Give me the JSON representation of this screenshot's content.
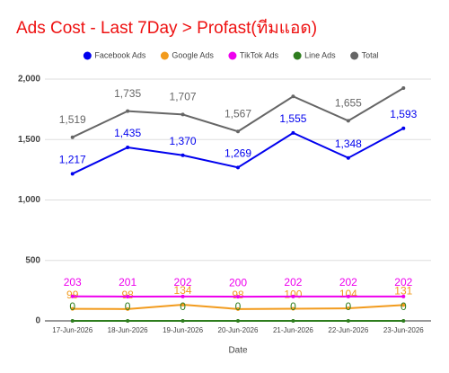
{
  "chart_data": {
    "type": "line",
    "title": "Ads Cost - Last 7Day > Profast(ทีมแอด)",
    "x_label": "Date",
    "categories": [
      "17-Jun-2026",
      "18-Jun-2026",
      "19-Jun-2026",
      "20-Jun-2026",
      "21-Jun-2026",
      "22-Jun-2026",
      "23-Jun-2026"
    ],
    "series": [
      {
        "name": "Facebook Ads",
        "color": "#0000ee",
        "values": [
          1217,
          1435,
          1370,
          1269,
          1555,
          1348,
          1593
        ],
        "value_labels": [
          "1,217",
          "1,435",
          "1,370",
          "1,269",
          "1,555",
          "1,348",
          "1,593"
        ]
      },
      {
        "name": "Google Ads",
        "color": "#f29b1d",
        "values": [
          99,
          98,
          134,
          98,
          100,
          104,
          131
        ]
      },
      {
        "name": "TikTok Ads",
        "color": "#ee00ee",
        "values": [
          203,
          201,
          202,
          200,
          202,
          202,
          202
        ]
      },
      {
        "name": "Line Ads",
        "color": "#2e7d1e",
        "values": [
          0,
          0,
          0,
          0,
          0,
          0,
          0
        ]
      },
      {
        "name": "Total",
        "color": "#666666",
        "values": [
          1519,
          1735,
          1707,
          1567,
          1857,
          1655,
          1926
        ],
        "value_labels": [
          "1,519",
          "1,735",
          "1,707",
          "1,567",
          null,
          "1,655",
          null
        ]
      }
    ],
    "ylim": [
      0,
      2000
    ],
    "yticks": [
      0,
      500,
      {
        "value": 1000,
        "label": "1,000"
      },
      {
        "value": 1500,
        "label": "1,500"
      },
      {
        "value": 2000,
        "label": "2,000"
      }
    ],
    "grid": true,
    "legend": "top"
  }
}
